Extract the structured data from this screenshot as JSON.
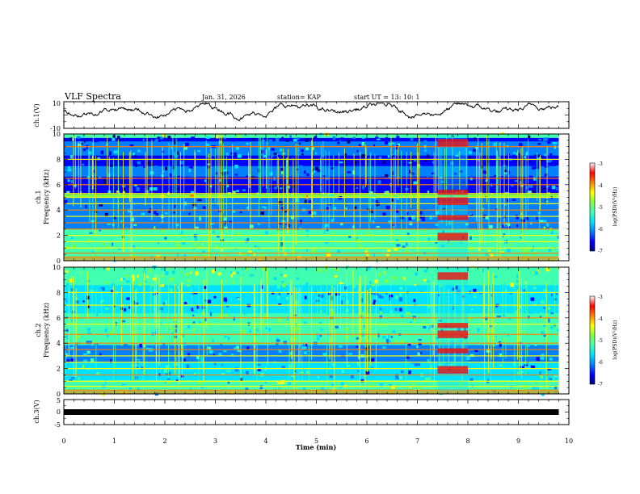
{
  "header": {
    "title": "VLF Spectra",
    "date": "Jan. 31, 2026",
    "station": "station= KAP",
    "start": "start  UT =  13: 10: 1"
  },
  "colors": {
    "colormap": [
      "#000080",
      "#0000ff",
      "#0080ff",
      "#00e0ff",
      "#40ffb0",
      "#80ff40",
      "#ffff00",
      "#ff8000",
      "#ff0000",
      "#ffffff"
    ],
    "trace": "#000000"
  },
  "chart_data": [
    {
      "type": "line",
      "id": "ch1-waveform",
      "ylabel": "ch.1(V)",
      "ylim": [
        -10,
        10
      ],
      "yticks": [
        "10",
        "-10"
      ],
      "xlim": [
        0,
        10
      ],
      "description_series": "broadband voltage trace, mostly between -5 and 8 V"
    },
    {
      "type": "heatmap",
      "id": "ch1-spectrogram",
      "ylabel": "ch.1\nFrequency (kHz)",
      "ylabel_lines": [
        "ch.1",
        "Frequency (kHz)"
      ],
      "ylim": [
        0,
        10
      ],
      "yticks": [
        "0",
        "2",
        "4",
        "6",
        "8",
        "10"
      ],
      "xlim": [
        0,
        10
      ],
      "colorbar": {
        "label": "log(PSD)(V²/Hz)",
        "range": [
          -7,
          -3
        ],
        "ticks": [
          "-3",
          "-4",
          "-5",
          "-6",
          "-7"
        ]
      },
      "lines_khz": [
        0.3,
        0.6,
        1.0,
        1.5,
        2.0,
        2.5,
        3.0,
        3.5,
        4.0,
        4.5,
        5.0,
        5.3,
        6.0,
        6.5,
        8.0,
        9.0
      ],
      "event_min": [
        7.4,
        8.0
      ]
    },
    {
      "type": "heatmap",
      "id": "ch2-spectrogram",
      "ylabel": "ch.2\nFrequency (kHz)",
      "ylabel_lines": [
        "ch.2",
        "Frequency (kHz)"
      ],
      "ylim": [
        0,
        10
      ],
      "yticks": [
        "0",
        "2",
        "4",
        "6",
        "8",
        "10"
      ],
      "xlim": [
        0,
        10
      ],
      "colorbar": {
        "label": "log(PSD)(V²/Hz)",
        "range": [
          -7,
          -3
        ],
        "ticks": [
          "-3",
          "-4",
          "-5",
          "-6",
          "-7"
        ]
      },
      "lines_khz": [
        0.3,
        0.6,
        1.0,
        1.5,
        2.0,
        2.5,
        3.0,
        3.5,
        4.0,
        4.7,
        5.5,
        6.0,
        7.0,
        8.0
      ],
      "event_min": [
        7.4,
        8.0
      ]
    },
    {
      "type": "line",
      "id": "ch3-waveform",
      "ylabel": "ch.3(V)",
      "ylim": [
        -5,
        5
      ],
      "yticks": [
        "5",
        "0",
        "-5"
      ],
      "xlim": [
        0,
        10
      ],
      "level_v": 0
    }
  ],
  "xaxis": {
    "label": "Time (min)",
    "range": [
      0,
      10
    ],
    "ticks": [
      "0",
      "1",
      "2",
      "3",
      "4",
      "5",
      "6",
      "7",
      "8",
      "9",
      "10"
    ],
    "data_end_min": 9.8
  }
}
